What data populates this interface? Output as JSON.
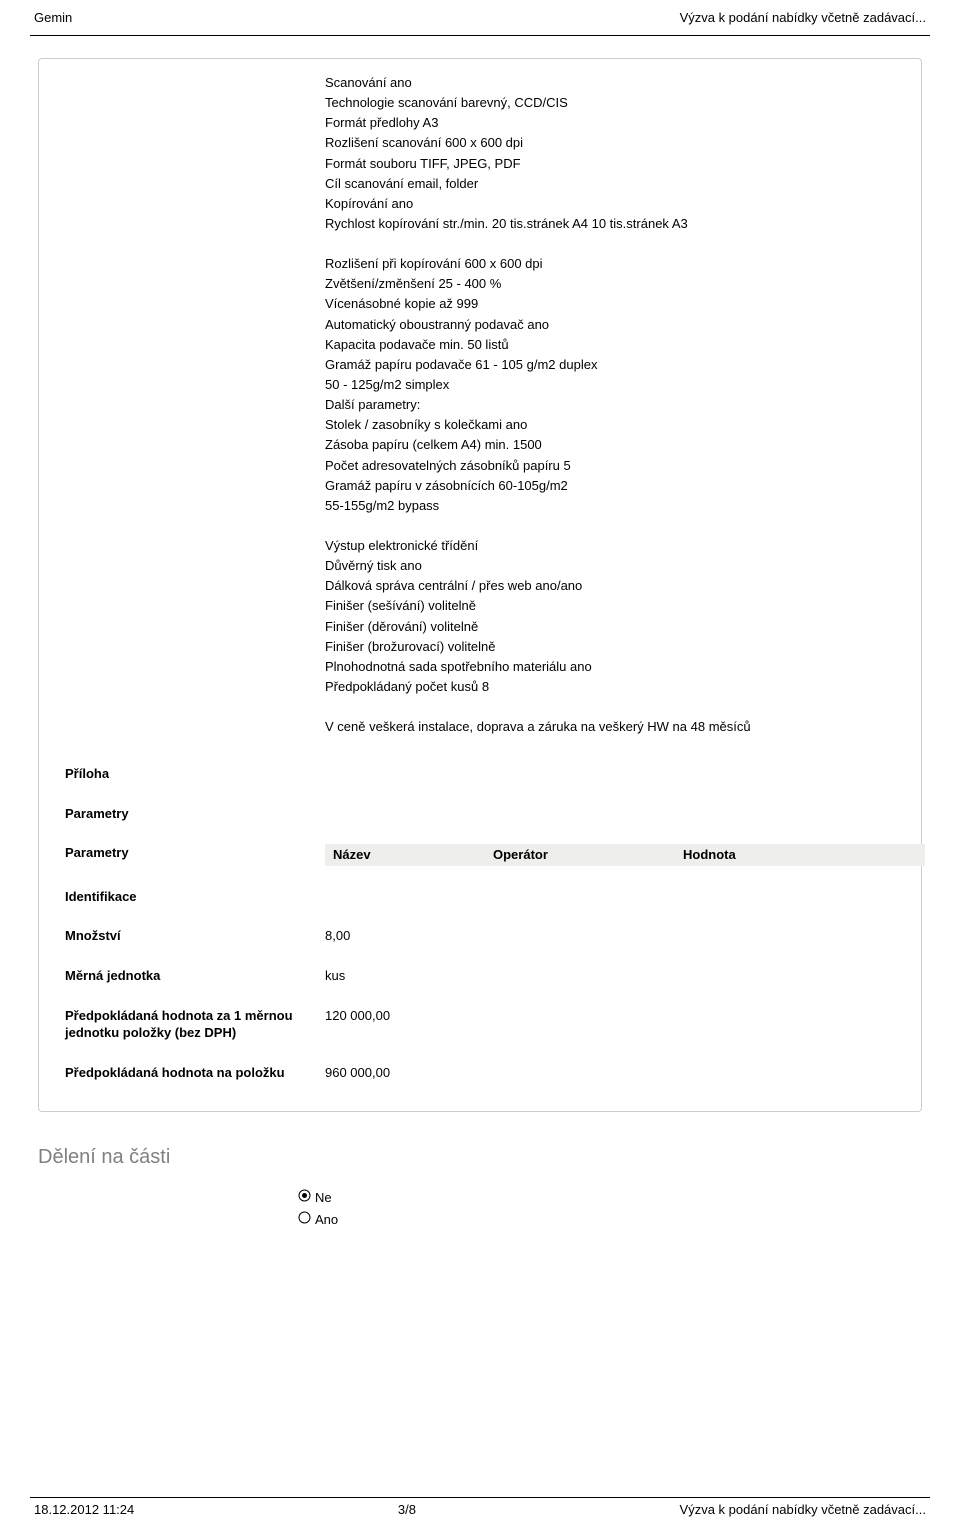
{
  "header": {
    "left": "Gemin",
    "right": "Výzva k podání nabídky včetně zadávací..."
  },
  "spec": {
    "block1": [
      "Scanování ano",
      "Technologie scanování barevný, CCD/CIS",
      "Formát předlohy A3",
      "Rozlišení scanování 600 x 600 dpi",
      "Formát souboru TIFF, JPEG, PDF",
      "Cíl scanování email, folder",
      "Kopírování ano",
      "Rychlost kopírování str./min. 20 tis.stránek A4 10 tis.stránek A3"
    ],
    "block2": [
      "Rozlišení při kopírování 600 x 600 dpi",
      "Zvětšení/změnšení 25 - 400 %",
      "Vícenásobné kopie až 999",
      "Automatický oboustranný podavač ano",
      "Kapacita podavače min. 50 listů",
      "Gramáž papíru podavače 61 - 105 g/m2 duplex",
      "50 - 125g/m2 simplex",
      "Další parametry:",
      "Stolek / zasobníky s kolečkami ano",
      "Zásoba papíru (celkem A4) min. 1500",
      "Počet adresovatelných zásobníků papíru 5",
      "Gramáž papíru v zásobnících 60-105g/m2",
      "55-155g/m2 bypass"
    ],
    "block3": [
      "Výstup elektronické třídění",
      "Důvěrný tisk ano",
      "Dálková správa centrální / přes web ano/ano",
      "Finišer (sešívání) volitelně",
      "Finišer (děrování) volitelně",
      "Finišer (brožurovací) volitelně",
      "Plnohodnotná sada spotřebního materiálu ano",
      "Předpokládaný počet kusů 8"
    ],
    "block4": [
      "V ceně veškerá instalace, doprava a záruka na veškerý HW na 48 měsíců"
    ]
  },
  "fields": {
    "priloha_label": "Příloha",
    "parametry_label": "Parametry",
    "param_row_label": "Parametry",
    "identifikace_label": "Identifikace",
    "mnozstvi_label": "Množství",
    "mnozstvi_value": "8,00",
    "jednotka_label": "Měrná jednotka",
    "jednotka_value": "kus",
    "hodnota_mj_label": "Předpokládaná hodnota za 1 měrnou jednotku položky (bez DPH)",
    "hodnota_mj_value": "120 000,00",
    "hodnota_polozka_label": "Předpokládaná hodnota na položku",
    "hodnota_polozka_value": "960 000,00",
    "table_cols": {
      "name": "Název",
      "op": "Operátor",
      "val": "Hodnota"
    }
  },
  "section": {
    "deleni": "Dělení na části",
    "radio_ne": "Ne",
    "radio_ano": "Ano",
    "selected": "ne"
  },
  "footer": {
    "left": "18.12.2012 11:24",
    "center": "3/8",
    "right": "Výzva k podání nabídky včetně zadávací..."
  }
}
